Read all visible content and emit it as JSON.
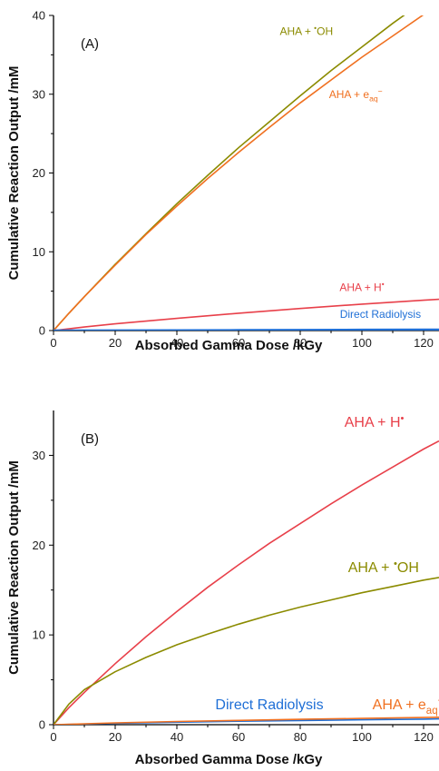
{
  "chart_data": [
    {
      "type": "line",
      "panel_label": "(A)",
      "xlabel": "Absorbed Gamma Dose /kGy",
      "ylabel": "Cumulative Reaction Output /mM",
      "xlim": [
        0,
        125
      ],
      "ylim": [
        0,
        40
      ],
      "xticks": [
        0,
        20,
        40,
        60,
        80,
        100,
        120
      ],
      "yticks": [
        0,
        10,
        20,
        30,
        40
      ],
      "label_size": 12,
      "series": [
        {
          "name": "AHA + •OH",
          "color": "#8B8B00",
          "label_at": [
            82,
            37.5
          ],
          "x": [
            0,
            5,
            10,
            20,
            30,
            40,
            50,
            60,
            70,
            80,
            90,
            100,
            110,
            120,
            125
          ],
          "y": [
            0,
            2.2,
            4.3,
            8.4,
            12.3,
            16.1,
            19.7,
            23.2,
            26.5,
            29.8,
            33.0,
            36.0,
            39.0,
            41.8,
            43.2
          ]
        },
        {
          "name": "AHA + e",
          "sub": "aq",
          "sup": "−",
          "color": "#F07020",
          "label_at": [
            98,
            29.5
          ],
          "x": [
            0,
            5,
            10,
            20,
            30,
            40,
            50,
            60,
            70,
            80,
            90,
            100,
            110,
            120,
            125
          ],
          "y": [
            0,
            2.2,
            4.3,
            8.3,
            12.2,
            15.8,
            19.3,
            22.6,
            25.8,
            28.9,
            31.8,
            34.7,
            37.4,
            40.1,
            41.4
          ]
        },
        {
          "name": "AHA + H•",
          "color": "#E8404A",
          "label_at": [
            100,
            5.0
          ],
          "x": [
            0,
            10,
            20,
            40,
            60,
            80,
            100,
            120,
            125
          ],
          "y": [
            0,
            0.45,
            0.85,
            1.55,
            2.2,
            2.8,
            3.35,
            3.85,
            3.97
          ]
        },
        {
          "name": "Direct Radiolysis",
          "color": "#1F6FD6",
          "label_at": [
            106,
            1.6
          ],
          "x": [
            0,
            20,
            40,
            60,
            80,
            100,
            120,
            125
          ],
          "y": [
            0,
            0.02,
            0.04,
            0.06,
            0.08,
            0.1,
            0.12,
            0.13
          ]
        }
      ]
    },
    {
      "type": "line",
      "panel_label": "(B)",
      "xlabel": "Absorbed Gamma Dose /kGy",
      "ylabel": "Cumulative Reaction Output /mM",
      "xlim": [
        0,
        125
      ],
      "ylim": [
        0,
        35
      ],
      "xticks": [
        0,
        20,
        40,
        60,
        80,
        100,
        120
      ],
      "yticks": [
        0,
        10,
        20,
        30
      ],
      "label_size": 16,
      "series": [
        {
          "name": "AHA + H•",
          "color": "#E8404A",
          "label_at": [
            104,
            33.2
          ],
          "x": [
            0,
            5,
            10,
            20,
            30,
            40,
            50,
            60,
            70,
            80,
            90,
            100,
            110,
            120,
            125
          ],
          "y": [
            0,
            1.9,
            3.6,
            6.8,
            9.8,
            12.6,
            15.3,
            17.8,
            20.2,
            22.4,
            24.6,
            26.7,
            28.7,
            30.7,
            31.6
          ]
        },
        {
          "name": "AHA + •OH",
          "color": "#8B8B00",
          "label_at": [
            107,
            17.0
          ],
          "x": [
            0,
            5,
            10,
            20,
            30,
            40,
            50,
            60,
            70,
            80,
            90,
            100,
            110,
            120,
            125
          ],
          "y": [
            0,
            2.3,
            3.9,
            5.9,
            7.5,
            8.9,
            10.1,
            11.2,
            12.2,
            13.1,
            13.9,
            14.7,
            15.4,
            16.1,
            16.4
          ]
        },
        {
          "name": "Direct Radiolysis",
          "color": "#1F6FD6",
          "label_at": [
            70,
            1.7
          ],
          "x": [
            0,
            20,
            40,
            60,
            80,
            100,
            120,
            125
          ],
          "y": [
            0,
            0.15,
            0.27,
            0.38,
            0.47,
            0.55,
            0.62,
            0.65
          ]
        },
        {
          "name": "AHA + e",
          "sub": "aq",
          "sup": "−",
          "color": "#F07020",
          "label_at": [
            115,
            1.7
          ],
          "x": [
            0,
            20,
            40,
            60,
            80,
            100,
            120,
            125
          ],
          "y": [
            0,
            0.2,
            0.35,
            0.48,
            0.6,
            0.7,
            0.8,
            0.83
          ]
        }
      ]
    }
  ]
}
